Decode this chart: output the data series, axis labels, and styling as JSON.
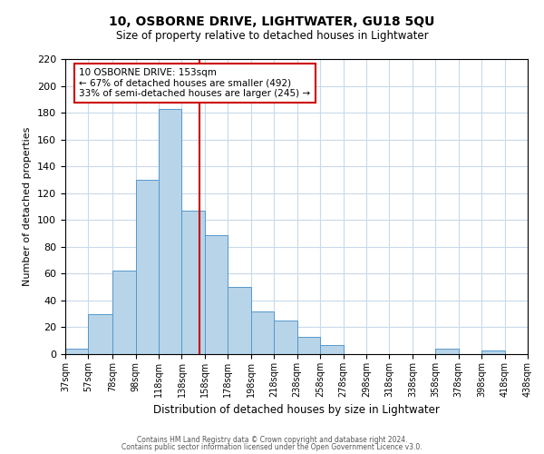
{
  "title": "10, OSBORNE DRIVE, LIGHTWATER, GU18 5QU",
  "subtitle": "Size of property relative to detached houses in Lightwater",
  "xlabel": "Distribution of detached houses by size in Lightwater",
  "ylabel": "Number of detached properties",
  "bin_edges": [
    37,
    57,
    78,
    98,
    118,
    138,
    158,
    178,
    198,
    218,
    238,
    258,
    278,
    298,
    318,
    338,
    358,
    378,
    398,
    418,
    438
  ],
  "bin_heights": [
    4,
    30,
    62,
    130,
    183,
    107,
    89,
    50,
    32,
    25,
    13,
    7,
    0,
    0,
    0,
    0,
    4,
    0,
    3,
    0
  ],
  "bar_facecolor": "#b8d4e8",
  "bar_edgecolor": "#5599cc",
  "reference_line_x": 153,
  "reference_line_color": "#cc0000",
  "annotation_title": "10 OSBORNE DRIVE: 153sqm",
  "annotation_line1": "← 67% of detached houses are smaller (492)",
  "annotation_line2": "33% of semi-detached houses are larger (245) →",
  "ylim": [
    0,
    220
  ],
  "yticks": [
    0,
    20,
    40,
    60,
    80,
    100,
    120,
    140,
    160,
    180,
    200,
    220
  ],
  "tick_labels": [
    "37sqm",
    "57sqm",
    "78sqm",
    "98sqm",
    "118sqm",
    "138sqm",
    "158sqm",
    "178sqm",
    "198sqm",
    "218sqm",
    "238sqm",
    "258sqm",
    "278sqm",
    "298sqm",
    "318sqm",
    "338sqm",
    "358sqm",
    "378sqm",
    "398sqm",
    "418sqm",
    "438sqm"
  ],
  "footer1": "Contains HM Land Registry data © Crown copyright and database right 2024.",
  "footer2": "Contains public sector information licensed under the Open Government Licence v3.0.",
  "grid_color": "#c8daea",
  "bg_color": "#ffffff",
  "title_fontsize": 10,
  "subtitle_fontsize": 8.5,
  "ylabel_fontsize": 8,
  "xlabel_fontsize": 8.5,
  "ytick_fontsize": 8,
  "xtick_fontsize": 7
}
